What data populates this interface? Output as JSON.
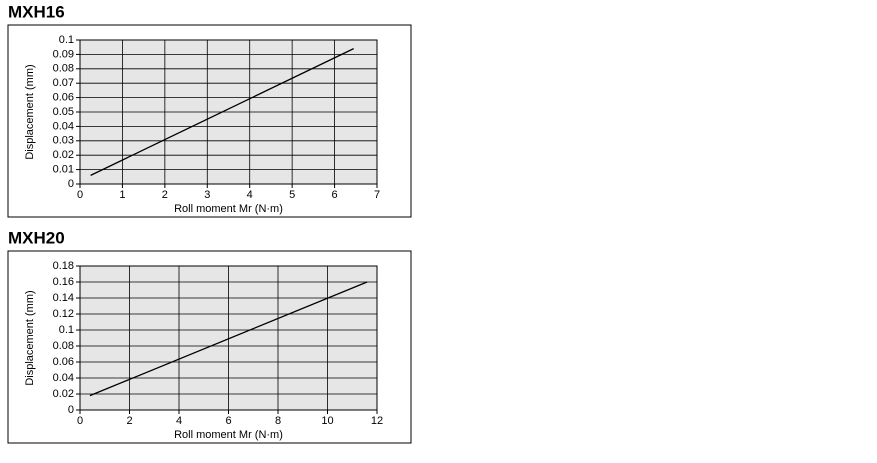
{
  "chart_data": [
    {
      "type": "line",
      "title": "MXH16",
      "x_label": "Roll moment Mr (N·m)",
      "y_label": "Displacement (mm)",
      "x": [
        0.25,
        6.45
      ],
      "values": [
        0.006,
        0.094
      ],
      "color": "#000000",
      "xlim": [
        0,
        7
      ],
      "xticks": [
        0,
        1,
        2,
        3,
        4,
        5,
        6,
        7
      ],
      "ylim": [
        0,
        0.1
      ],
      "yticks": [
        0,
        0.01,
        0.02,
        0.03,
        0.04,
        0.05,
        0.06,
        0.07,
        0.08,
        0.09,
        0.1
      ],
      "grid": true
    },
    {
      "type": "line",
      "title": "MXH20",
      "x_label": "Roll moment Mr (N·m)",
      "y_label": "Displacement (mm)",
      "x": [
        0.4,
        11.6
      ],
      "values": [
        0.018,
        0.16
      ],
      "color": "#000000",
      "xlim": [
        0,
        12
      ],
      "xticks": [
        0,
        2,
        4,
        6,
        8,
        10,
        12
      ],
      "ylim": [
        0,
        0.18
      ],
      "yticks": [
        0,
        0.02,
        0.04,
        0.06,
        0.08,
        0.1,
        0.12,
        0.14,
        0.16,
        0.18
      ],
      "grid": true
    }
  ]
}
